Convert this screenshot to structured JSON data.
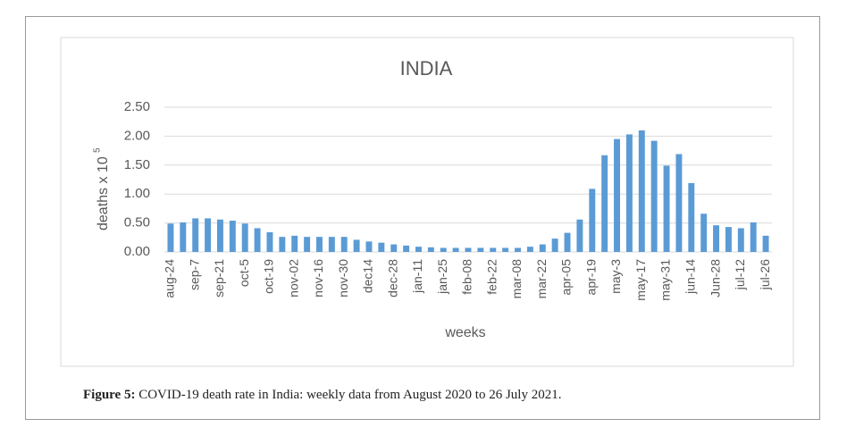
{
  "chart_data": {
    "type": "bar",
    "title": "INDIA",
    "x_label": "weeks",
    "y_label": "deaths x 10",
    "y_label_superscript": "5",
    "categories": [
      "aug-24",
      null,
      "sep-7",
      null,
      "sep-21",
      null,
      "oct-5",
      null,
      "oct-19",
      null,
      "nov-02",
      null,
      "nov-16",
      null,
      "nov-30",
      null,
      "dec14",
      null,
      "dec-28",
      null,
      "jan-11",
      null,
      "jan-25",
      null,
      "feb-08",
      null,
      "feb-22",
      null,
      "mar-08",
      null,
      "mar-22",
      null,
      "apr-05",
      null,
      "apr-19",
      null,
      "may-3",
      null,
      "may-17",
      null,
      "may-31",
      null,
      "jun-14",
      null,
      "Jun-28",
      null,
      "jul-12",
      null,
      "jul-26"
    ],
    "values": [
      0.49,
      0.51,
      0.58,
      0.58,
      0.56,
      0.54,
      0.49,
      0.41,
      0.34,
      0.26,
      0.28,
      0.26,
      0.26,
      0.26,
      0.26,
      0.21,
      0.18,
      0.16,
      0.13,
      0.11,
      0.09,
      0.08,
      0.07,
      0.07,
      0.07,
      0.07,
      0.07,
      0.07,
      0.07,
      0.09,
      0.13,
      0.23,
      0.33,
      0.56,
      1.09,
      1.67,
      1.95,
      2.03,
      2.1,
      1.92,
      1.49,
      1.69,
      1.19,
      0.66,
      0.46,
      0.43,
      0.41,
      0.51,
      0.28
    ],
    "color": "#5b9bd5",
    "ylim": [
      0,
      2.5
    ],
    "yticks": [
      {
        "value": 0,
        "label": "0.00"
      },
      {
        "value": 0.5,
        "label": "0.50"
      },
      {
        "value": 1,
        "label": "1.00"
      },
      {
        "value": 1.5,
        "label": "1.50"
      },
      {
        "value": 2,
        "label": "2.00"
      },
      {
        "value": 2.5,
        "label": "2.50"
      }
    ],
    "grid": true
  },
  "caption": {
    "label": "Figure 5:",
    "text": "COVID-19 death rate in India: weekly data from August 2020 to 26 July 2021."
  }
}
